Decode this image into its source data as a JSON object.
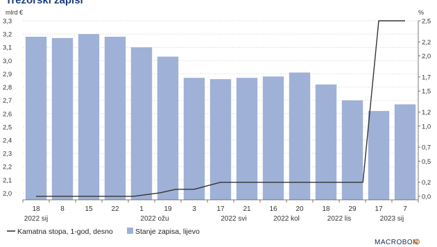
{
  "chart_data": {
    "type": "bar",
    "title": "Trezorski zapisi",
    "y_left_unit": "mlrd €",
    "y_right_unit": "%",
    "ylim_left": [
      1.95,
      3.3
    ],
    "ylim_right": [
      -0.05,
      2.5
    ],
    "left_ticks": [
      "2,0",
      "2,1",
      "2,2",
      "2,3",
      "2,4",
      "2,5",
      "2,6",
      "2,7",
      "2,8",
      "2,9",
      "3,0",
      "3,1",
      "3,2",
      "3,3"
    ],
    "right_ticks": [
      "0,0",
      "0,2",
      "0,5",
      "0,7",
      "1,0",
      "1,2",
      "1,5",
      "1,7",
      "2,0",
      "2,2",
      "2,5"
    ],
    "x_day_labels": [
      "18",
      "8",
      "15",
      "22",
      "1",
      "19",
      "3",
      "17",
      "21",
      "16",
      "20",
      "18",
      "29",
      "17",
      "7"
    ],
    "x_period_labels": [
      {
        "text": "2022 sij",
        "at": 0
      },
      {
        "text": "2022 ožu",
        "at": 4.5
      },
      {
        "text": "2022 svi",
        "at": 7.5
      },
      {
        "text": "2022 kol",
        "at": 9.5
      },
      {
        "text": "2022 lis",
        "at": 11.5
      },
      {
        "text": "2023 sij",
        "at": 13.5
      }
    ],
    "series": [
      {
        "name": "Stanje zapisa, lijevo",
        "type": "bar",
        "axis": "left",
        "color": "#9fb1d6",
        "values": [
          3.18,
          3.17,
          3.2,
          3.18,
          3.1,
          3.03,
          2.87,
          2.86,
          2.87,
          2.88,
          2.91,
          2.82,
          2.7,
          2.62,
          2.67
        ]
      },
      {
        "name": "Kamatna stopa, 1-god, desno",
        "type": "line",
        "axis": "right",
        "color": "#333333",
        "points": [
          {
            "x": 0,
            "y": 0.0
          },
          {
            "x": 3.7,
            "y": 0.0
          },
          {
            "x": 4.7,
            "y": 0.05
          },
          {
            "x": 5.3,
            "y": 0.1
          },
          {
            "x": 6.0,
            "y": 0.1
          },
          {
            "x": 7.0,
            "y": 0.2
          },
          {
            "x": 12.4,
            "y": 0.2
          },
          {
            "x": 13.0,
            "y": 2.5
          },
          {
            "x": 14.0,
            "y": 2.5
          }
        ]
      }
    ],
    "legend_position": "bottom-left",
    "grid": true
  },
  "legend": [
    {
      "label": "Kamatna stopa, 1-god, desno",
      "swatch": "line",
      "color": "#333333"
    },
    {
      "label": "Stanje zapisa, lijevo",
      "swatch": "box",
      "color": "#9fb1d6"
    }
  ],
  "branding": "MACROBON"
}
